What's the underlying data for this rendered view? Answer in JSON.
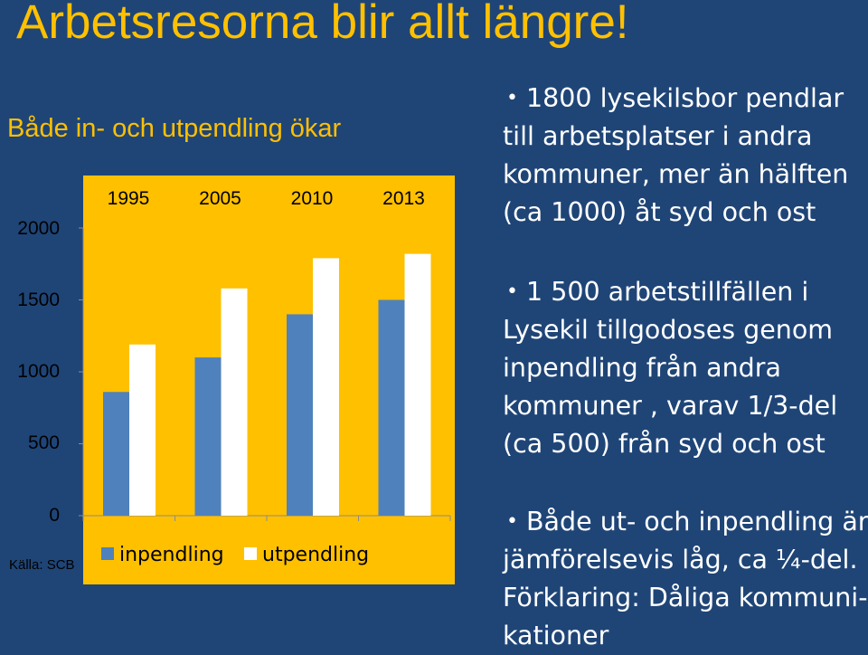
{
  "slide": {
    "title": "Arbetsresorna blir allt längre!",
    "subtitle": "Både in- och utpendling ökar",
    "source": "Källa: SCB",
    "bullets": [
      "1800 lysekilsbor pendlar till arbetsplatser i andra kommuner, mer än hälften (ca 1000) åt syd och ost",
      "1 500 arbetstillfällen i Lysekil tillgodoses genom inpendling från andra kommuner , varav 1/3-del (ca 500) från syd och ost",
      "Både ut- och inpendling är jämförelsevis låg, ca ¼-del. Förklaring: Dåliga kommuni-kationer"
    ]
  },
  "colors": {
    "background": "#1F4577",
    "title": "#FFC000",
    "chart_background": "#FFC000",
    "inpendling": "#4F81BD",
    "utpendling": "#FFFFFF"
  },
  "chart_data": {
    "type": "bar",
    "categories": [
      "1995",
      "2005",
      "2010",
      "2013"
    ],
    "series": [
      {
        "name": "inpendling",
        "values": [
          860,
          1100,
          1400,
          1500
        ]
      },
      {
        "name": "utpendling",
        "values": [
          1190,
          1580,
          1790,
          1820
        ]
      }
    ],
    "yticks": [
      "0",
      "500",
      "1000",
      "1500",
      "2000"
    ],
    "ylim": [
      0,
      2000
    ],
    "legend_position": "bottom",
    "grid": false
  }
}
